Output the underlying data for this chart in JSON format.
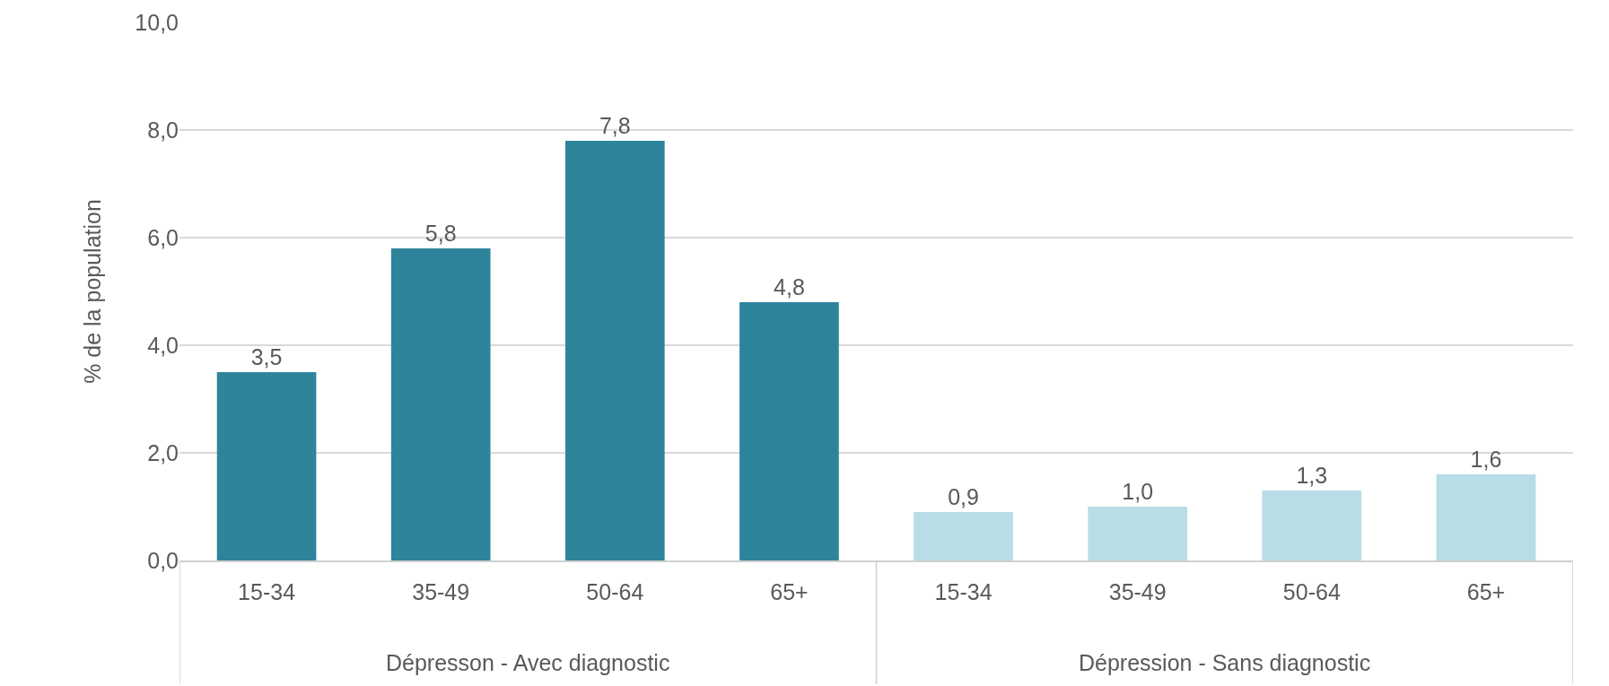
{
  "chart_data": {
    "type": "bar",
    "ylabel": "% de la population",
    "categories": [
      "15-34",
      "35-49",
      "50-64",
      "65+",
      "15-34",
      "35-49",
      "50-64",
      "65+"
    ],
    "values": [
      3.5,
      5.8,
      7.8,
      4.8,
      0.9,
      1.0,
      1.3,
      1.6
    ],
    "colors": [
      "#2e849b",
      "#2e849b",
      "#2e849b",
      "#2e849b",
      "#b7dde6",
      "#b7dde6",
      "#b7dde6",
      "#b7dde6"
    ],
    "value_labels": [
      "3,5",
      "5,8",
      "7,8",
      "4,8",
      "0,9",
      "1,0",
      "1,3",
      "1,6"
    ],
    "annotations": [
      "Dépresson - Avec diagnostic",
      "Dépression - Sans diagnostic"
    ],
    "ylim": [
      0,
      10
    ],
    "yticks": [
      {
        "value": 0,
        "label": "0,0"
      },
      {
        "value": 2,
        "label": "2,0"
      },
      {
        "value": 4,
        "label": "4,0"
      },
      {
        "value": 6,
        "label": "6,0"
      },
      {
        "value": 8,
        "label": "8,0"
      },
      {
        "value": 10,
        "label": "10,0"
      }
    ],
    "grid": "y"
  }
}
